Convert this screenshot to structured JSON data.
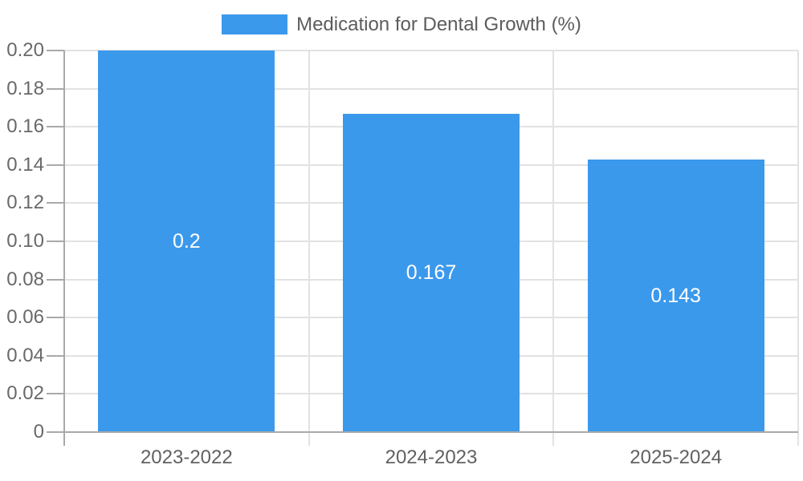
{
  "legend": {
    "label": "Medication for Dental Growth (%)"
  },
  "colors": {
    "bar": "#3b99ec",
    "grid": "#e2e2e2",
    "axis": "#a9a9a9",
    "tick_text": "#696969",
    "category_text": "#616161",
    "bar_label_text": "#ffffff",
    "background": "#ffffff"
  },
  "chart_data": {
    "type": "bar",
    "title": "",
    "legend_position": "top",
    "categories": [
      "2023-2022",
      "2024-2023",
      "2025-2024"
    ],
    "series": [
      {
        "name": "Medication for Dental Growth (%)",
        "values": [
          0.2,
          0.167,
          0.143
        ],
        "value_labels": [
          "0.2",
          "0.167",
          "0.143"
        ],
        "color": "#3b99ec"
      }
    ],
    "xlabel": "",
    "ylabel": "",
    "ylim": [
      0,
      0.2
    ],
    "ytick_step": 0.02,
    "ytick_labels": [
      "0",
      "0.02",
      "0.04",
      "0.06",
      "0.08",
      "0.10",
      "0.12",
      "0.14",
      "0.16",
      "0.18",
      "0.20"
    ],
    "grid": true
  }
}
